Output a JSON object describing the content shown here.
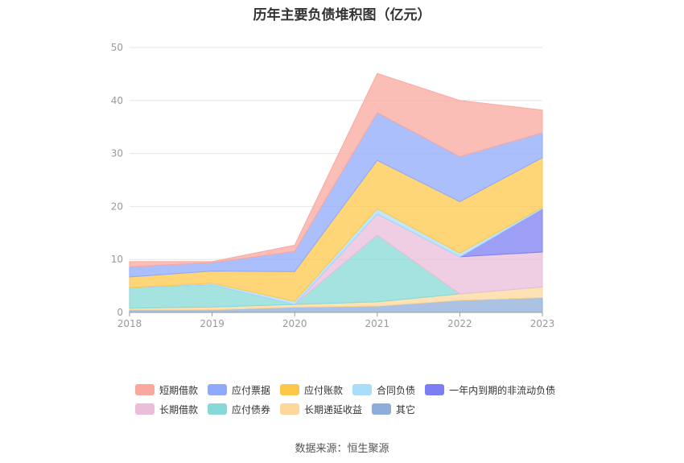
{
  "title": "历年主要负债堆积图（亿元）",
  "source": "数据来源：恒生聚源",
  "chart_data": {
    "type": "area",
    "stacked": true,
    "x": [
      "2018",
      "2019",
      "2020",
      "2021",
      "2022",
      "2023"
    ],
    "ylim": [
      0,
      50
    ],
    "yticks": [
      0,
      10,
      20,
      30,
      40,
      50
    ],
    "grid": true,
    "legend_position": "bottom",
    "series": [
      {
        "name": "其它",
        "color": "#8fadd9",
        "values": [
          0.5,
          0.5,
          1.0,
          1.2,
          2.3,
          2.8
        ]
      },
      {
        "name": "长期递延收益",
        "color": "#fdd89a",
        "values": [
          0.3,
          0.5,
          0.5,
          0.8,
          1.2,
          2.0
        ]
      },
      {
        "name": "应付债券",
        "color": "#86d9d6",
        "values": [
          3.9,
          4.2,
          0.0,
          12.6,
          0.0,
          0.0
        ]
      },
      {
        "name": "长期借款",
        "color": "#eabdd9",
        "values": [
          0.0,
          0.0,
          0.0,
          4.0,
          7.0,
          6.6
        ]
      },
      {
        "name": "一年内到期的非流动负债",
        "color": "#7b7ff2",
        "values": [
          0.0,
          0.0,
          0.0,
          0.0,
          0.0,
          8.2
        ]
      },
      {
        "name": "合同负债",
        "color": "#a9defa",
        "values": [
          0.0,
          0.3,
          0.6,
          1.0,
          0.7,
          0.2
        ]
      },
      {
        "name": "应付账款",
        "color": "#fdc84a",
        "values": [
          2.0,
          2.3,
          5.6,
          9.1,
          9.7,
          9.4
        ]
      },
      {
        "name": "应付票据",
        "color": "#8fa9fb",
        "values": [
          1.9,
          1.6,
          3.8,
          9.0,
          8.5,
          4.7
        ]
      },
      {
        "name": "短期借款",
        "color": "#f9a89f",
        "values": [
          1.0,
          0.2,
          1.2,
          7.4,
          10.6,
          4.3
        ]
      }
    ],
    "legend_rows": [
      [
        "短期借款",
        "应付票据",
        "应付账款",
        "合同负债",
        "一年内到期的非流动负债"
      ],
      [
        "长期借款",
        "应付债券",
        "长期递延收益",
        "其它"
      ]
    ]
  }
}
